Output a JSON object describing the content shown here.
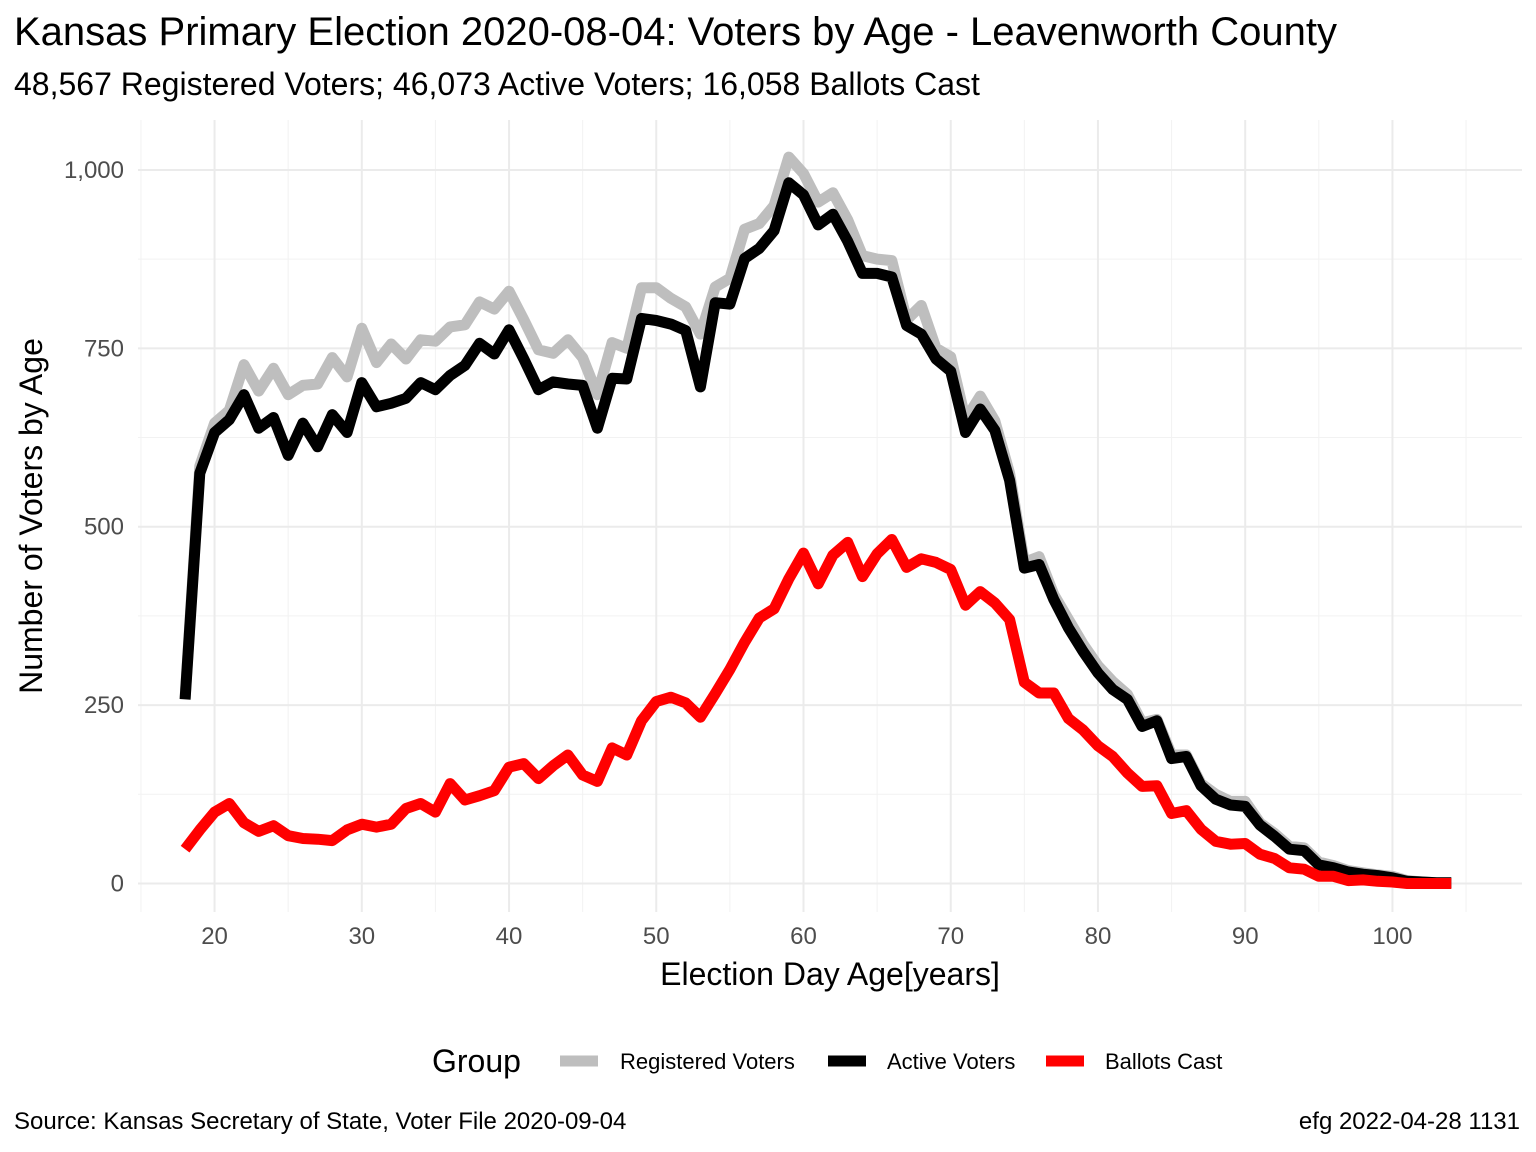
{
  "title": "Kansas Primary Election 2020-08-04:  Voters by Age - Leavenworth County",
  "subtitle": "48,567 Registered Voters; 46,073 Active Voters; 16,058 Ballots Cast",
  "caption_left": "Source:  Kansas Secretary of State, Voter File  2020-09-04",
  "caption_right": "efg 2022-04-28 1131",
  "chart_data": {
    "type": "line",
    "xlabel": "Election Day Age[years]",
    "ylabel": "Number of Voters by Age",
    "xlim": [
      14.8,
      108.8
    ],
    "ylim": [
      -40,
      1070
    ],
    "x_ticks": [
      20,
      30,
      40,
      50,
      60,
      70,
      80,
      90,
      100
    ],
    "x_tick_labels": [
      "20",
      "30",
      "40",
      "50",
      "60",
      "70",
      "80",
      "90",
      "100"
    ],
    "y_ticks": [
      0,
      250,
      500,
      750,
      1000
    ],
    "y_tick_labels": [
      "0",
      "250",
      "500",
      "750",
      "1,000"
    ],
    "grid": true,
    "legend": {
      "title": "Group",
      "position": "bottom"
    },
    "x": [
      18,
      19,
      20,
      21,
      22,
      23,
      24,
      25,
      26,
      27,
      28,
      29,
      30,
      31,
      32,
      33,
      34,
      35,
      36,
      37,
      38,
      39,
      40,
      41,
      42,
      43,
      44,
      45,
      46,
      47,
      48,
      49,
      50,
      51,
      52,
      53,
      54,
      55,
      56,
      57,
      58,
      59,
      60,
      61,
      62,
      63,
      64,
      65,
      66,
      67,
      68,
      69,
      70,
      71,
      72,
      73,
      74,
      75,
      76,
      77,
      78,
      79,
      80,
      81,
      82,
      83,
      84,
      85,
      86,
      87,
      88,
      89,
      90,
      91,
      92,
      93,
      94,
      95,
      96,
      97,
      98,
      99,
      100,
      101,
      102,
      103,
      104
    ],
    "series": [
      {
        "name": "Registered Voters",
        "color": "#bebebe",
        "values": [
          260,
          585,
          645,
          663,
          727,
          690,
          722,
          685,
          698,
          700,
          737,
          710,
          778,
          730,
          756,
          735,
          762,
          760,
          780,
          783,
          815,
          805,
          830,
          790,
          748,
          743,
          762,
          737,
          685,
          758,
          750,
          835,
          835,
          820,
          808,
          770,
          836,
          848,
          917,
          925,
          950,
          1018,
          995,
          955,
          968,
          930,
          880,
          875,
          873,
          790,
          810,
          750,
          738,
          650,
          683,
          648,
          575,
          450,
          458,
          405,
          370,
          335,
          305,
          283,
          265,
          225,
          230,
          180,
          180,
          140,
          125,
          115,
          115,
          85,
          70,
          52,
          50,
          30,
          25,
          18,
          15,
          12,
          10,
          4,
          2,
          1,
          1
        ]
      },
      {
        "name": "Active Voters",
        "color": "#000000",
        "values": [
          258,
          575,
          632,
          650,
          685,
          638,
          653,
          600,
          645,
          612,
          657,
          632,
          702,
          668,
          673,
          680,
          702,
          692,
          712,
          726,
          757,
          742,
          776,
          735,
          692,
          703,
          700,
          698,
          638,
          708,
          707,
          792,
          789,
          784,
          775,
          696,
          814,
          812,
          876,
          890,
          915,
          982,
          965,
          923,
          938,
          900,
          855,
          855,
          850,
          782,
          770,
          735,
          718,
          632,
          665,
          635,
          565,
          442,
          447,
          398,
          358,
          325,
          295,
          272,
          258,
          220,
          228,
          175,
          178,
          137,
          118,
          110,
          108,
          82,
          66,
          48,
          46,
          26,
          22,
          16,
          13,
          11,
          8,
          3,
          2,
          1,
          1
        ]
      },
      {
        "name": "Ballots Cast",
        "color": "#ff0000",
        "values": [
          48,
          75,
          100,
          112,
          85,
          73,
          81,
          67,
          63,
          62,
          60,
          75,
          83,
          79,
          83,
          105,
          112,
          100,
          140,
          117,
          123,
          130,
          163,
          168,
          147,
          165,
          180,
          152,
          143,
          190,
          180,
          228,
          255,
          261,
          253,
          233,
          266,
          300,
          338,
          372,
          385,
          427,
          463,
          420,
          460,
          478,
          430,
          462,
          482,
          443,
          455,
          450,
          440,
          390,
          409,
          393,
          370,
          282,
          267,
          267,
          231,
          215,
          193,
          178,
          155,
          136,
          137,
          98,
          102,
          76,
          59,
          55,
          56,
          41,
          35,
          22,
          20,
          10,
          10,
          4,
          5,
          3,
          2,
          0,
          0,
          0,
          0
        ]
      }
    ]
  }
}
